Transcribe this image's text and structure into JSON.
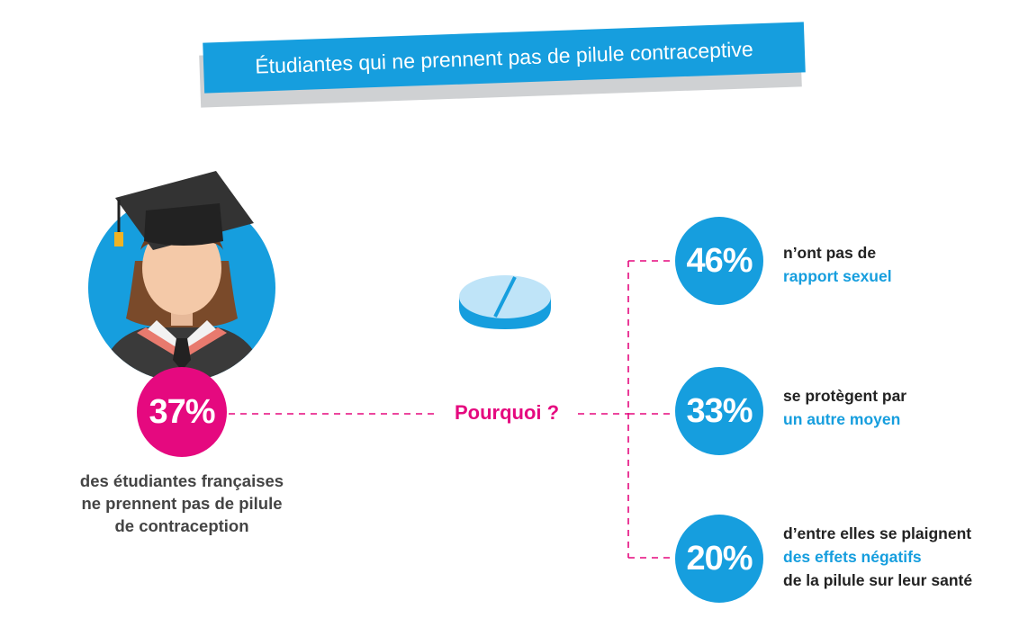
{
  "title": "Étudiantes qui ne prennent pas de pilule contraceptive",
  "main_stat": {
    "value": "37%",
    "description": [
      "des étudiantes françaises",
      "ne prennent pas de pilule",
      "de contraception"
    ]
  },
  "question": "Pourquoi ?",
  "reasons": [
    {
      "value": "46%",
      "line1": "n’ont pas de",
      "highlight": "rapport sexuel",
      "line3": ""
    },
    {
      "value": "33%",
      "line1": "se protègent par",
      "highlight": "un autre moyen",
      "line3": ""
    },
    {
      "value": "20%",
      "line1": "d’entre elles se plaignent",
      "highlight": "des effets négatifs",
      "line3": "de la pilule sur leur santé"
    }
  ],
  "colors": {
    "accent_blue": "#169ede",
    "accent_pink": "#e5097f",
    "text_dark": "#222222",
    "text_grey": "#444444"
  },
  "icons": [
    "graduate-avatar-icon",
    "pill-icon"
  ]
}
